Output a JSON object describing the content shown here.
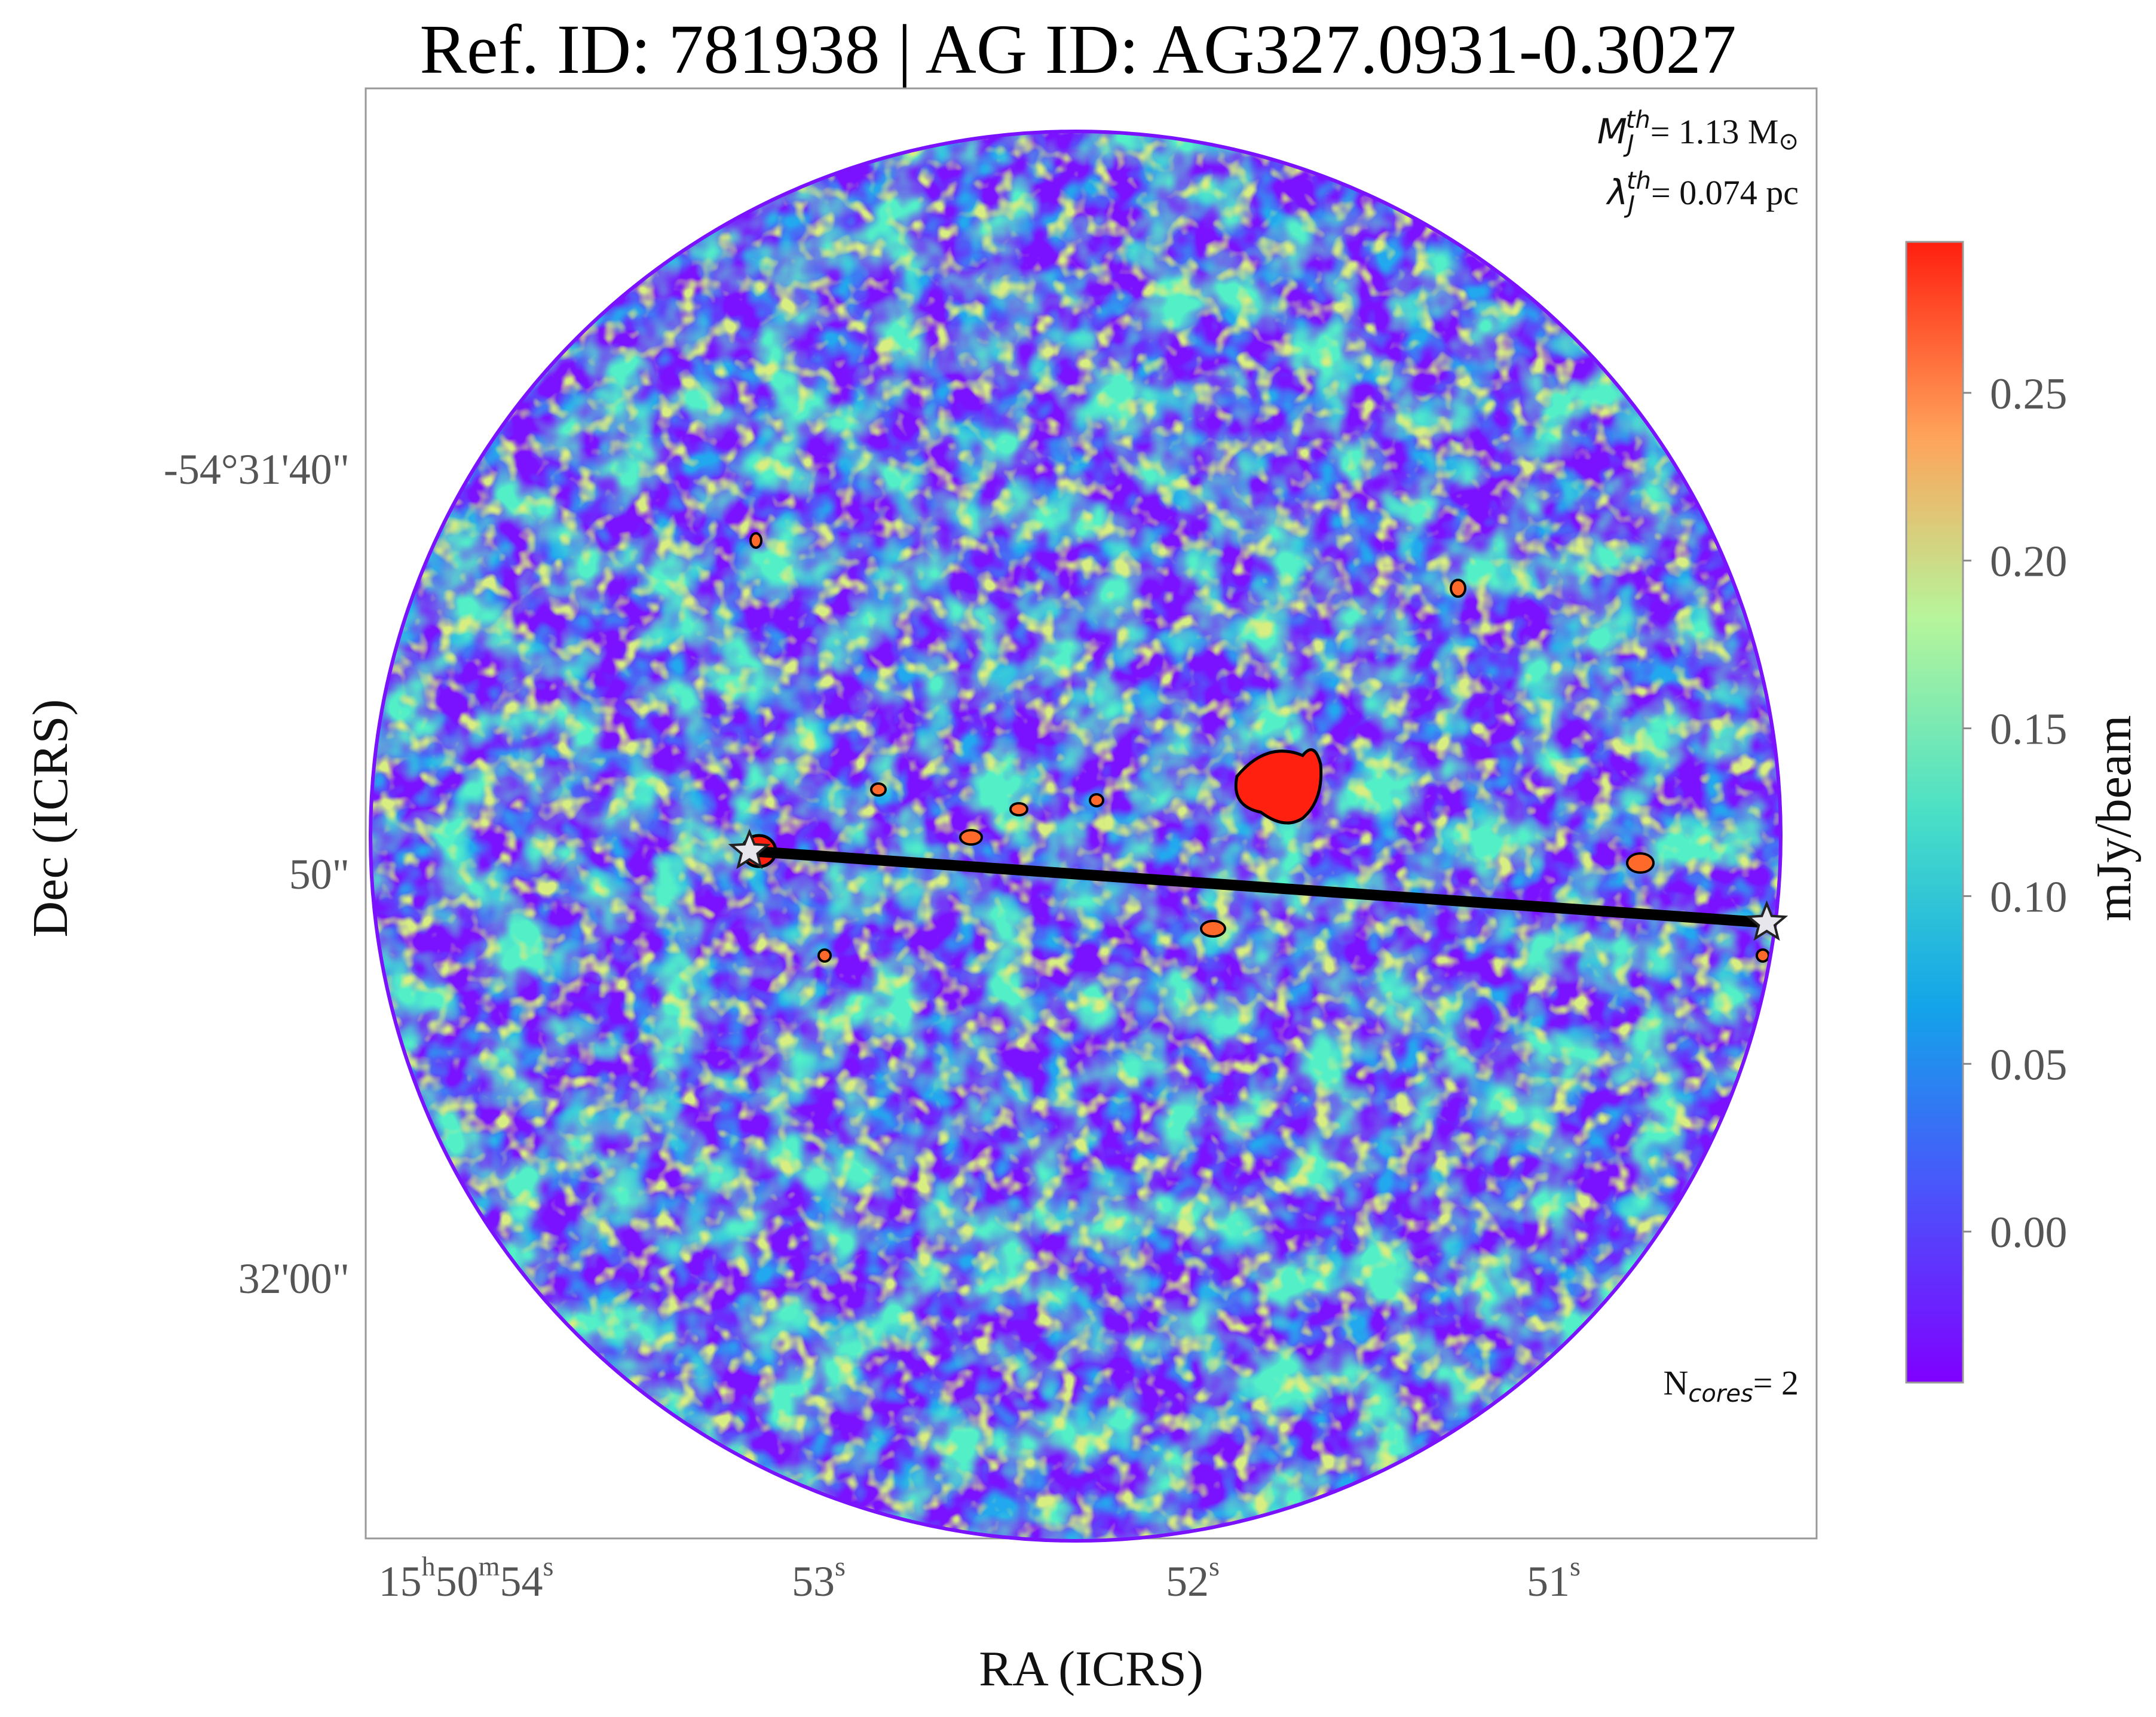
{
  "chart_data": {
    "type": "heatmap",
    "title": "Ref. ID: 781938 | AG ID: AG327.0931-0.3027",
    "xlabel": "RA (ICRS)",
    "ylabel": "Dec (ICRS)",
    "x_ticks": [
      {
        "h": "15",
        "hu": "h",
        "m": "50",
        "mu": "m",
        "s": "54",
        "su": "s"
      },
      {
        "s": "53",
        "su": "s"
      },
      {
        "s": "52",
        "su": "s"
      },
      {
        "s": "51",
        "su": "s"
      }
    ],
    "y_ticks": [
      "-54°31'40\"",
      "50\"",
      "32'00\""
    ],
    "colorbar": {
      "label": "mJy/beam",
      "ticks": [
        "0.00",
        "0.05",
        "0.10",
        "0.15",
        "0.20",
        "0.25"
      ],
      "tick_values": [
        0.0,
        0.05,
        0.1,
        0.15,
        0.2,
        0.25
      ],
      "vmin": -0.045,
      "vmax": 0.295,
      "colormap": "rainbow"
    },
    "annotations": {
      "mj_symbol": "M",
      "mj_sub": "J",
      "mj_sup": "th",
      "mj_value": "= 1.13 M",
      "mj_unit_symbol": "⊙",
      "lj_symbol": "λ",
      "lj_sub": "J",
      "lj_sup": "th",
      "lj_value": "= 0.074 pc",
      "ncores_symbol": "N",
      "ncores_sub": "cores",
      "ncores_value": "= 2"
    },
    "cores": [
      {
        "ra_s": 53.22,
        "dec_arcsec_offset": 48.4
      },
      {
        "ra_s": 50.42,
        "dec_arcsec_offset": 50.6
      }
    ],
    "contours": "black",
    "grid": false
  }
}
